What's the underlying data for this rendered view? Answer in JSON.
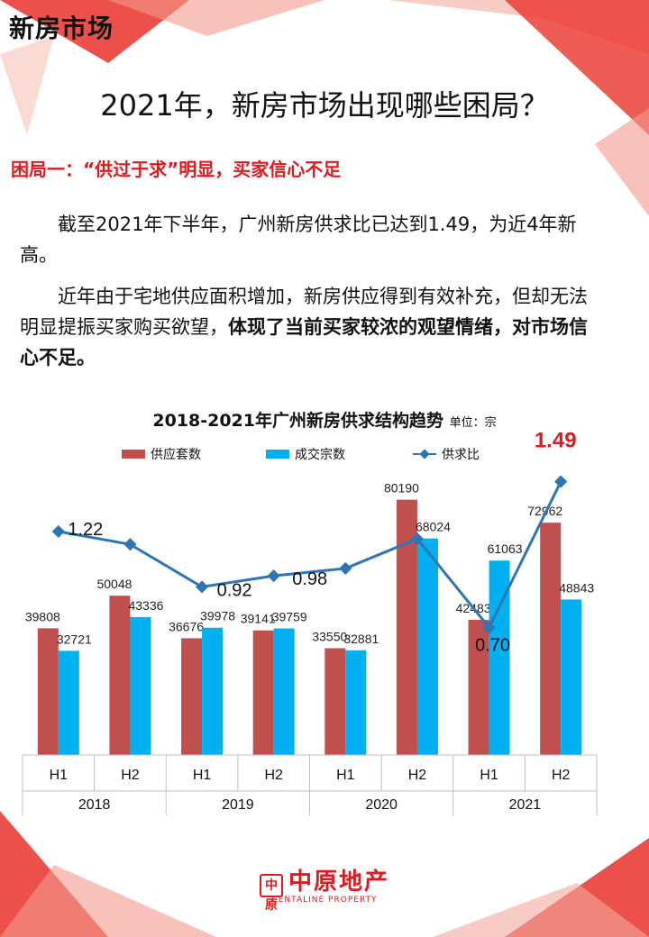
{
  "header": {
    "title": "新房市场"
  },
  "main_title": "2021年，新房市场出现哪些困局？",
  "section": {
    "subtitle": "困局一：“供过于求”明显，买家信心不足"
  },
  "paragraphs": {
    "p1": "截至2021年下半年，广州新房供求比已达到1.49，为近4年新高。",
    "p2_plain": "近年由于宅地供应面积增加，新房供应得到有效补充，但却无法明显提振买家购买欲望，",
    "p2_bold": "体现了当前买家较浓的观望情绪，对市场信心不足。"
  },
  "logo": {
    "name": "中原地产",
    "en": "CENTALINE PROPERTY",
    "mark": "中原"
  },
  "colors": {
    "supply": "#c0504d",
    "deal": "#00b0f0",
    "ratio": "#2e75b6",
    "accent": "#e0191f"
  },
  "chart_data": {
    "type": "bar",
    "title": "2018-2021年广州新房供求结构趋势",
    "unit": "单位：宗",
    "legend": [
      "供应套数",
      "成交宗数",
      "供求比"
    ],
    "categories": [
      "H1",
      "H2",
      "H1",
      "H2",
      "H1",
      "H2",
      "H1",
      "H2"
    ],
    "years": [
      "2018",
      "2019",
      "2020",
      "2021"
    ],
    "series": [
      {
        "name": "供应套数",
        "values": [
          39808,
          50048,
          36676,
          39141,
          33550,
          80190,
          42483,
          72962
        ]
      },
      {
        "name": "成交宗数",
        "values": [
          32721,
          43336,
          39978,
          39759,
          32881,
          68024,
          61063,
          48843
        ]
      }
    ],
    "line": {
      "name": "供求比",
      "values": [
        1.22,
        1.15,
        0.92,
        0.98,
        1.02,
        1.18,
        0.7,
        1.49
      ],
      "labels": [
        "1.22",
        "",
        "0.92",
        "0.98",
        "",
        "",
        "0.70",
        "1.49"
      ]
    },
    "ylim": [
      0,
      90000
    ]
  }
}
